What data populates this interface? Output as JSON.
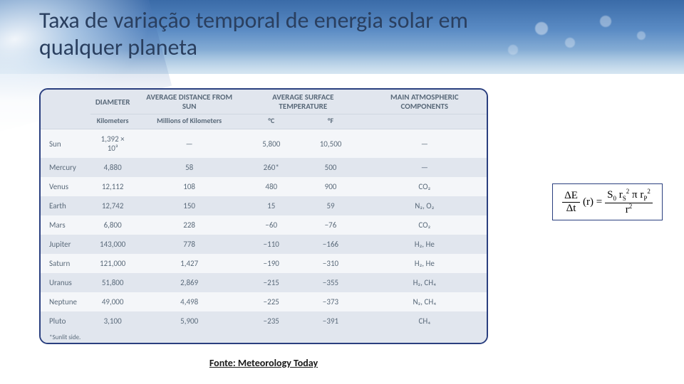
{
  "title": "Taxa de variação temporal de energia solar em qualquer planeta",
  "caption": "Fonte: Meteorology Today",
  "table": {
    "headers": {
      "col1_main": "DIAMETER",
      "col1_sub": "Kilometers",
      "col2_main": "AVERAGE DISTANCE FROM SUN",
      "col2_sub": "Millions of Kilometers",
      "col3_main": "AVERAGE SURFACE TEMPERATURE",
      "col3_sub_c": "°C",
      "col3_sub_f": "°F",
      "col4_main": "MAIN ATMOSPHERIC COMPONENTS"
    },
    "rows": [
      {
        "name": "Sun",
        "diameter": "1,392 × 10³",
        "dist": "—",
        "tc": "5,800",
        "tf": "10,500",
        "atm": "—"
      },
      {
        "name": "Mercury",
        "diameter": "4,880",
        "dist": "58",
        "tc": "260*",
        "tf": "500",
        "atm": "—"
      },
      {
        "name": "Venus",
        "diameter": "12,112",
        "dist": "108",
        "tc": "480",
        "tf": "900",
        "atm": "CO₂"
      },
      {
        "name": "Earth",
        "diameter": "12,742",
        "dist": "150",
        "tc": "15",
        "tf": "59",
        "atm": "N₂, O₂"
      },
      {
        "name": "Mars",
        "diameter": "6,800",
        "dist": "228",
        "tc": "−60",
        "tf": "−76",
        "atm": "CO₂"
      },
      {
        "name": "Jupiter",
        "diameter": "143,000",
        "dist": "778",
        "tc": "−110",
        "tf": "−166",
        "atm": "H₂, He"
      },
      {
        "name": "Saturn",
        "diameter": "121,000",
        "dist": "1,427",
        "tc": "−190",
        "tf": "−310",
        "atm": "H₂, He"
      },
      {
        "name": "Uranus",
        "diameter": "51,800",
        "dist": "2,869",
        "tc": "−215",
        "tf": "−355",
        "atm": "H₂, CH₄"
      },
      {
        "name": "Neptune",
        "diameter": "49,000",
        "dist": "4,498",
        "tc": "−225",
        "tf": "−373",
        "atm": "N₂, CH₄"
      },
      {
        "name": "Pluto",
        "diameter": "3,100",
        "dist": "5,900",
        "tc": "−235",
        "tf": "−391",
        "atm": "CH₄"
      }
    ],
    "footnote": "*Sunlit side."
  },
  "formula": {
    "lhs_num": "ΔE",
    "lhs_den": "Δt",
    "mid": "(r) =",
    "rhs_num": "S₀ r²_S π r²_P",
    "rhs_den": "r²"
  },
  "style": {
    "title_color": "#2a3f5f",
    "title_fontsize": 32,
    "border_color": "#2a3f7f",
    "border_radius": 12,
    "header_bg": "#e1e6ee",
    "row_odd_bg": "#f4f6f9",
    "row_even_bg": "#e1e6ee",
    "text_color": "#5a6a7a",
    "table_fontsize": 11,
    "caption_fontsize": 14,
    "formula_fontsize": 15,
    "sky_gradient": [
      "#3a6ba8",
      "#5a8bc4",
      "#b8d4e8"
    ]
  }
}
